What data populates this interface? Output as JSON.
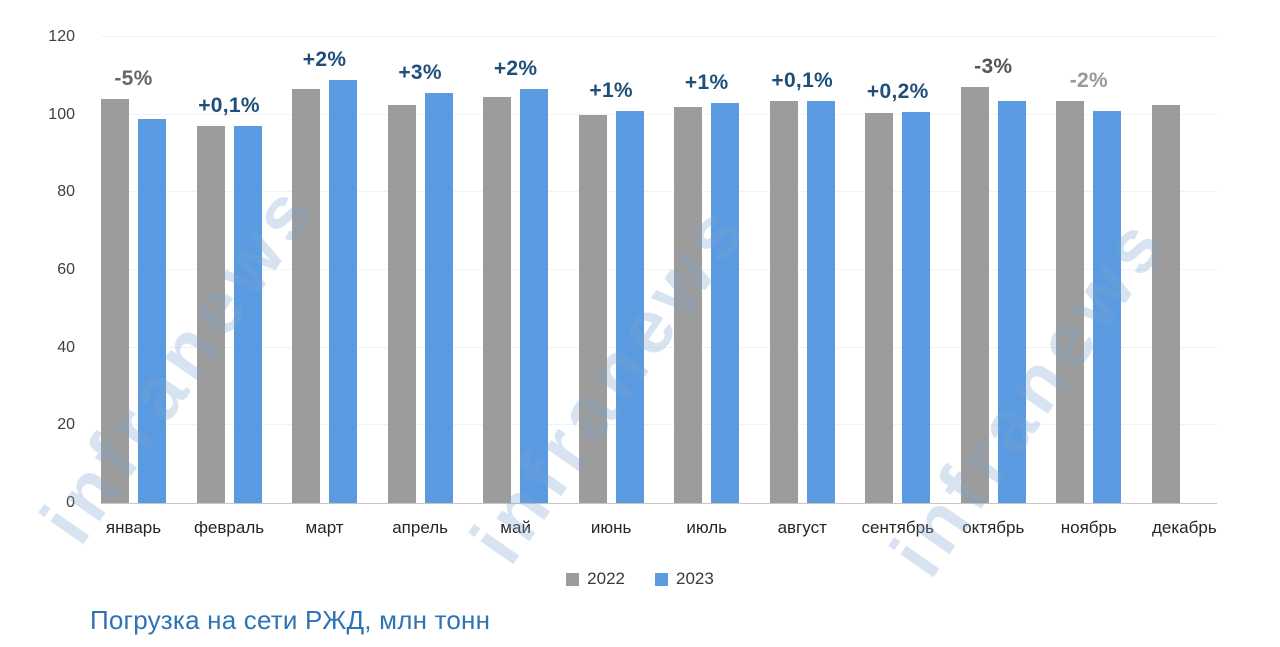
{
  "watermark": {
    "text": "infranews",
    "color": "#7ea6d0"
  },
  "legend": {
    "items": [
      {
        "label": "2022",
        "color": "#9c9c9c"
      },
      {
        "label": "2023",
        "color": "#5a9ae0"
      }
    ]
  },
  "chart_data": {
    "type": "bar",
    "title": "Погрузка на сети РЖД, млн тонн",
    "title_color": "#2e74b5",
    "xlabel": "",
    "ylabel": "",
    "ylim": [
      0,
      120
    ],
    "yticks": [
      0,
      20,
      40,
      60,
      80,
      100,
      120
    ],
    "grid": true,
    "legend_position": "bottom",
    "categories": [
      "январь",
      "февраль",
      "март",
      "апрель",
      "май",
      "июнь",
      "июль",
      "август",
      "сентябрь",
      "октябрь",
      "ноябрь",
      "декабрь"
    ],
    "series": [
      {
        "name": "2022",
        "color": "#9c9c9c",
        "values": [
          104,
          97,
          106.5,
          102.5,
          104.5,
          100,
          102,
          103.5,
          100.5,
          107,
          103.5,
          102.5
        ]
      },
      {
        "name": "2023",
        "color": "#5a9ae0",
        "values": [
          99,
          97.1,
          109,
          105.5,
          106.5,
          101,
          103,
          103.6,
          100.7,
          103.5,
          101,
          null
        ]
      }
    ],
    "point_labels": [
      {
        "text": "-5%",
        "color": "#666666"
      },
      {
        "text": "+0,1%",
        "color": "#1f4e79"
      },
      {
        "text": "+2%",
        "color": "#1f4e79"
      },
      {
        "text": "+3%",
        "color": "#1f4e79"
      },
      {
        "text": "+2%",
        "color": "#1f4e79"
      },
      {
        "text": "+1%",
        "color": "#1f4e79"
      },
      {
        "text": "+1%",
        "color": "#1f4e79"
      },
      {
        "text": "+0,1%",
        "color": "#1f4e79"
      },
      {
        "text": "+0,2%",
        "color": "#1f4e79"
      },
      {
        "text": "-3%",
        "color": "#555555"
      },
      {
        "text": "-2%",
        "color": "#999999"
      },
      {
        "text": "",
        "color": ""
      }
    ]
  }
}
